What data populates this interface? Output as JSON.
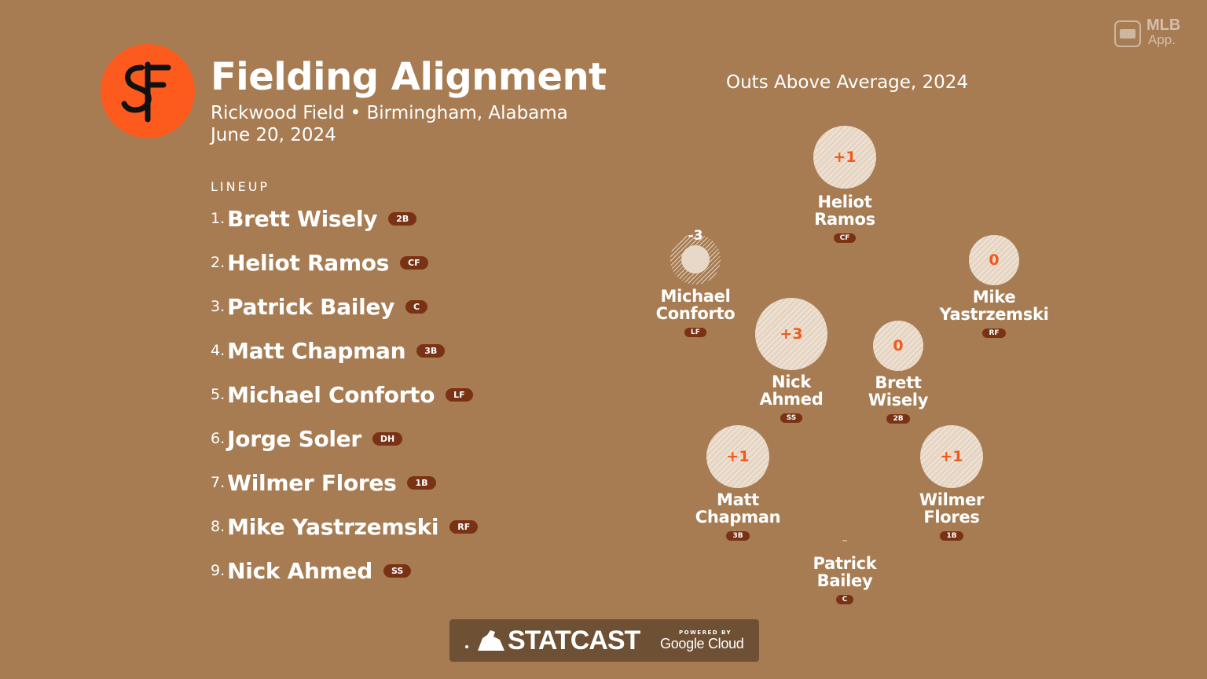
{
  "header": {
    "title": "Fielding Alignment",
    "venue": "Rickwood Field • Birmingham, Alabama",
    "date": "June 20, 2024",
    "logo_icon": "sf-giants-logo",
    "logo_color": "#fd5a1e"
  },
  "lineup": {
    "heading": "LINEUP",
    "items": [
      {
        "num": "1.",
        "name": "Brett Wisely",
        "pos": "2B"
      },
      {
        "num": "2.",
        "name": "Heliot Ramos",
        "pos": "CF"
      },
      {
        "num": "3.",
        "name": "Patrick Bailey",
        "pos": "C"
      },
      {
        "num": "4.",
        "name": "Matt Chapman",
        "pos": "3B"
      },
      {
        "num": "5.",
        "name": "Michael Conforto",
        "pos": "LF"
      },
      {
        "num": "6.",
        "name": "Jorge Soler",
        "pos": "DH"
      },
      {
        "num": "7.",
        "name": "Wilmer Flores",
        "pos": "1B"
      },
      {
        "num": "8.",
        "name": "Mike Yastrzemski",
        "pos": "RF"
      },
      {
        "num": "9.",
        "name": "Nick Ahmed",
        "pos": "SS"
      }
    ]
  },
  "field": {
    "title": "Outs Above Average, 2024",
    "players": [
      {
        "first": "Heliot",
        "last": "Ramos",
        "pos": "CF",
        "oaa": "+1"
      },
      {
        "first": "Michael",
        "last": "Conforto",
        "pos": "LF",
        "oaa": "-3"
      },
      {
        "first": "Mike",
        "last": "Yastrzemski",
        "pos": "RF",
        "oaa": "0"
      },
      {
        "first": "Nick",
        "last": "Ahmed",
        "pos": "SS",
        "oaa": "+3"
      },
      {
        "first": "Brett",
        "last": "Wisely",
        "pos": "2B",
        "oaa": "0"
      },
      {
        "first": "Matt",
        "last": "Chapman",
        "pos": "3B",
        "oaa": "+1"
      },
      {
        "first": "Wilmer",
        "last": "Flores",
        "pos": "1B",
        "oaa": "+1"
      },
      {
        "first": "Patrick",
        "last": "Bailey",
        "pos": "C",
        "oaa": "–"
      }
    ]
  },
  "footer": {
    "statcast": "STATCAST",
    "powered_by": "POWERED BY",
    "google_cloud": "Google Cloud"
  },
  "watermark": {
    "mlb": "MLB",
    "app": "App."
  },
  "colors": {
    "background": "#a77c53",
    "badge": "#7a3214",
    "oaa_text": "#f05a1a"
  }
}
